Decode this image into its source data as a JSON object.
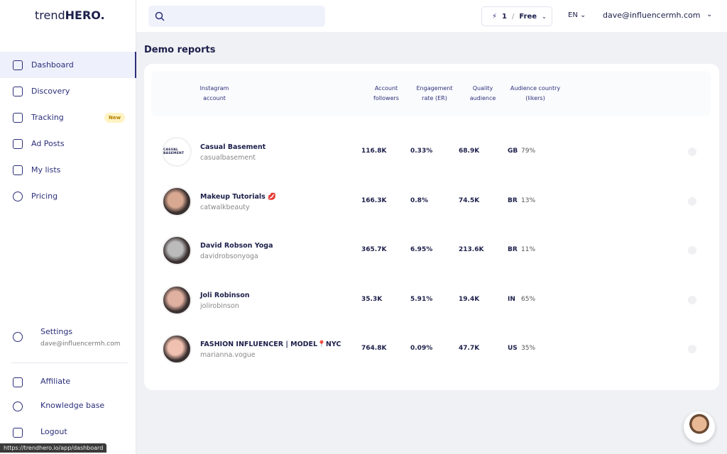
{
  "brand": {
    "prefix": "trend",
    "suffix": "HERO."
  },
  "topbar": {
    "credits": "1",
    "separator": "/",
    "plan": "Free",
    "language": "EN",
    "user": "dave@influencermh.com"
  },
  "sidebar": {
    "nav": [
      "Dashboard",
      "Discovery",
      "Tracking",
      "Ad Posts",
      "My lists",
      "Pricing"
    ],
    "badge": "New",
    "settings": {
      "label": "Settings",
      "email": "dave@influencermh.com"
    },
    "bottom": [
      "Affiliate",
      "Knowledge base",
      "Logout"
    ]
  },
  "status_url": "https://trendhero.io/app/dashboard",
  "page": {
    "title": "Demo reports"
  },
  "table": {
    "headers": [
      [
        "Instagram",
        "account"
      ],
      [
        "Account",
        "followers"
      ],
      [
        "Engagement",
        "rate (ER)"
      ],
      [
        "Quality",
        "audience"
      ],
      [
        "Audience country",
        "(likers)"
      ]
    ],
    "rows": [
      {
        "name": "Casual Basement",
        "handle": "casualbasement",
        "followers": "116.8K",
        "er": "0.33%",
        "quality": "68.9K",
        "country": "GB",
        "share": "79%",
        "avatar": "CASUAL BASEMENT"
      },
      {
        "name": "Makeup Tutorials 💋",
        "handle": "catwalkbeauty",
        "followers": "166.3K",
        "er": "0.8%",
        "quality": "74.5K",
        "country": "BR",
        "share": "13%"
      },
      {
        "name": "David Robson Yoga",
        "handle": "davidrobsonyoga",
        "followers": "365.7K",
        "er": "6.95%",
        "quality": "213.6K",
        "country": "BR",
        "share": "11%"
      },
      {
        "name": "Joli Robinson",
        "handle": "jolirobinson",
        "followers": "35.3K",
        "er": "5.91%",
        "quality": "19.4K",
        "country": "IN",
        "share": "65%"
      },
      {
        "name": "FASHION INFLUENCER | MODEL📍NYC",
        "handle": "marianna.vogue",
        "followers": "764.8K",
        "er": "0.09%",
        "quality": "47.7K",
        "country": "US",
        "share": "35%"
      }
    ]
  }
}
